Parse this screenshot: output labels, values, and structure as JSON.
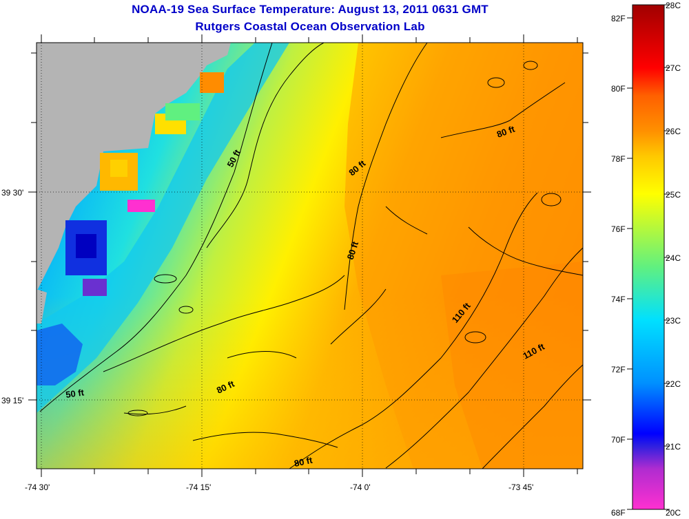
{
  "header": {
    "title": "NOAA-19 Sea Surface Temperature:  August 13, 2011 0631 GMT",
    "subtitle": "Rutgers Coastal Ocean Observation Lab"
  },
  "map": {
    "lon_ticks": [
      "-74 30'",
      "-74 15'",
      "-74 0'",
      "-73 45'"
    ],
    "lat_ticks": [
      "39 30'",
      "39 15'"
    ],
    "land_color": "#b4b4b4",
    "contour_labels": [
      "50 ft",
      "50 ft",
      "80 ft",
      "80 ft",
      "80 ft",
      "80 ft",
      "80 ft",
      "110 ft",
      "110 ft"
    ]
  },
  "colorbar": {
    "fahrenheit_labels": [
      "82F",
      "80F",
      "78F",
      "76F",
      "74F",
      "72F",
      "70F",
      "68F"
    ],
    "celsius_labels": [
      "28C",
      "27C",
      "26C",
      "25C",
      "24C",
      "23C",
      "22C",
      "21C",
      "20C"
    ],
    "range_c": [
      20,
      28
    ],
    "colors": [
      "#ff30d0",
      "#7a28c8",
      "#0000ff",
      "#0090ff",
      "#00e0ff",
      "#30e0a0",
      "#ffff00",
      "#ffc800",
      "#ff8c00",
      "#ff3000",
      "#ff0000",
      "#a00000"
    ]
  }
}
